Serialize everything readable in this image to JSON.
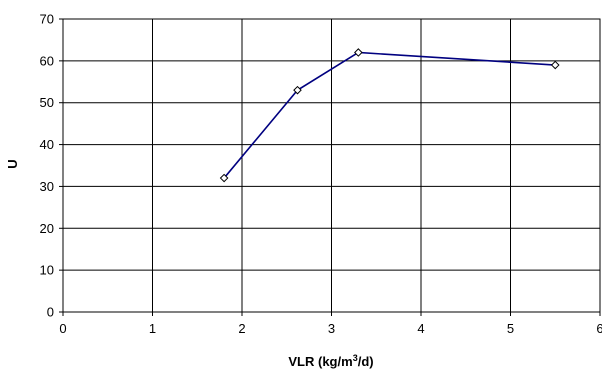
{
  "chart_data": {
    "type": "line",
    "title": "",
    "xlabel_main": "VLR (kg/m",
    "xlabel_sup": "3",
    "xlabel_tail": "/d)",
    "ylabel": "U",
    "xlim": [
      0,
      6
    ],
    "ylim": [
      0,
      70
    ],
    "x_ticks": [
      0,
      1,
      2,
      3,
      4,
      5,
      6
    ],
    "y_ticks": [
      0,
      10,
      20,
      30,
      40,
      50,
      60,
      70
    ],
    "grid": true,
    "series": [
      {
        "color": "#000080",
        "marker": "diamond",
        "points": [
          {
            "x": 1.8,
            "y": 32
          },
          {
            "x": 2.62,
            "y": 53
          },
          {
            "x": 3.3,
            "y": 62
          },
          {
            "x": 5.5,
            "y": 59
          }
        ]
      }
    ]
  }
}
